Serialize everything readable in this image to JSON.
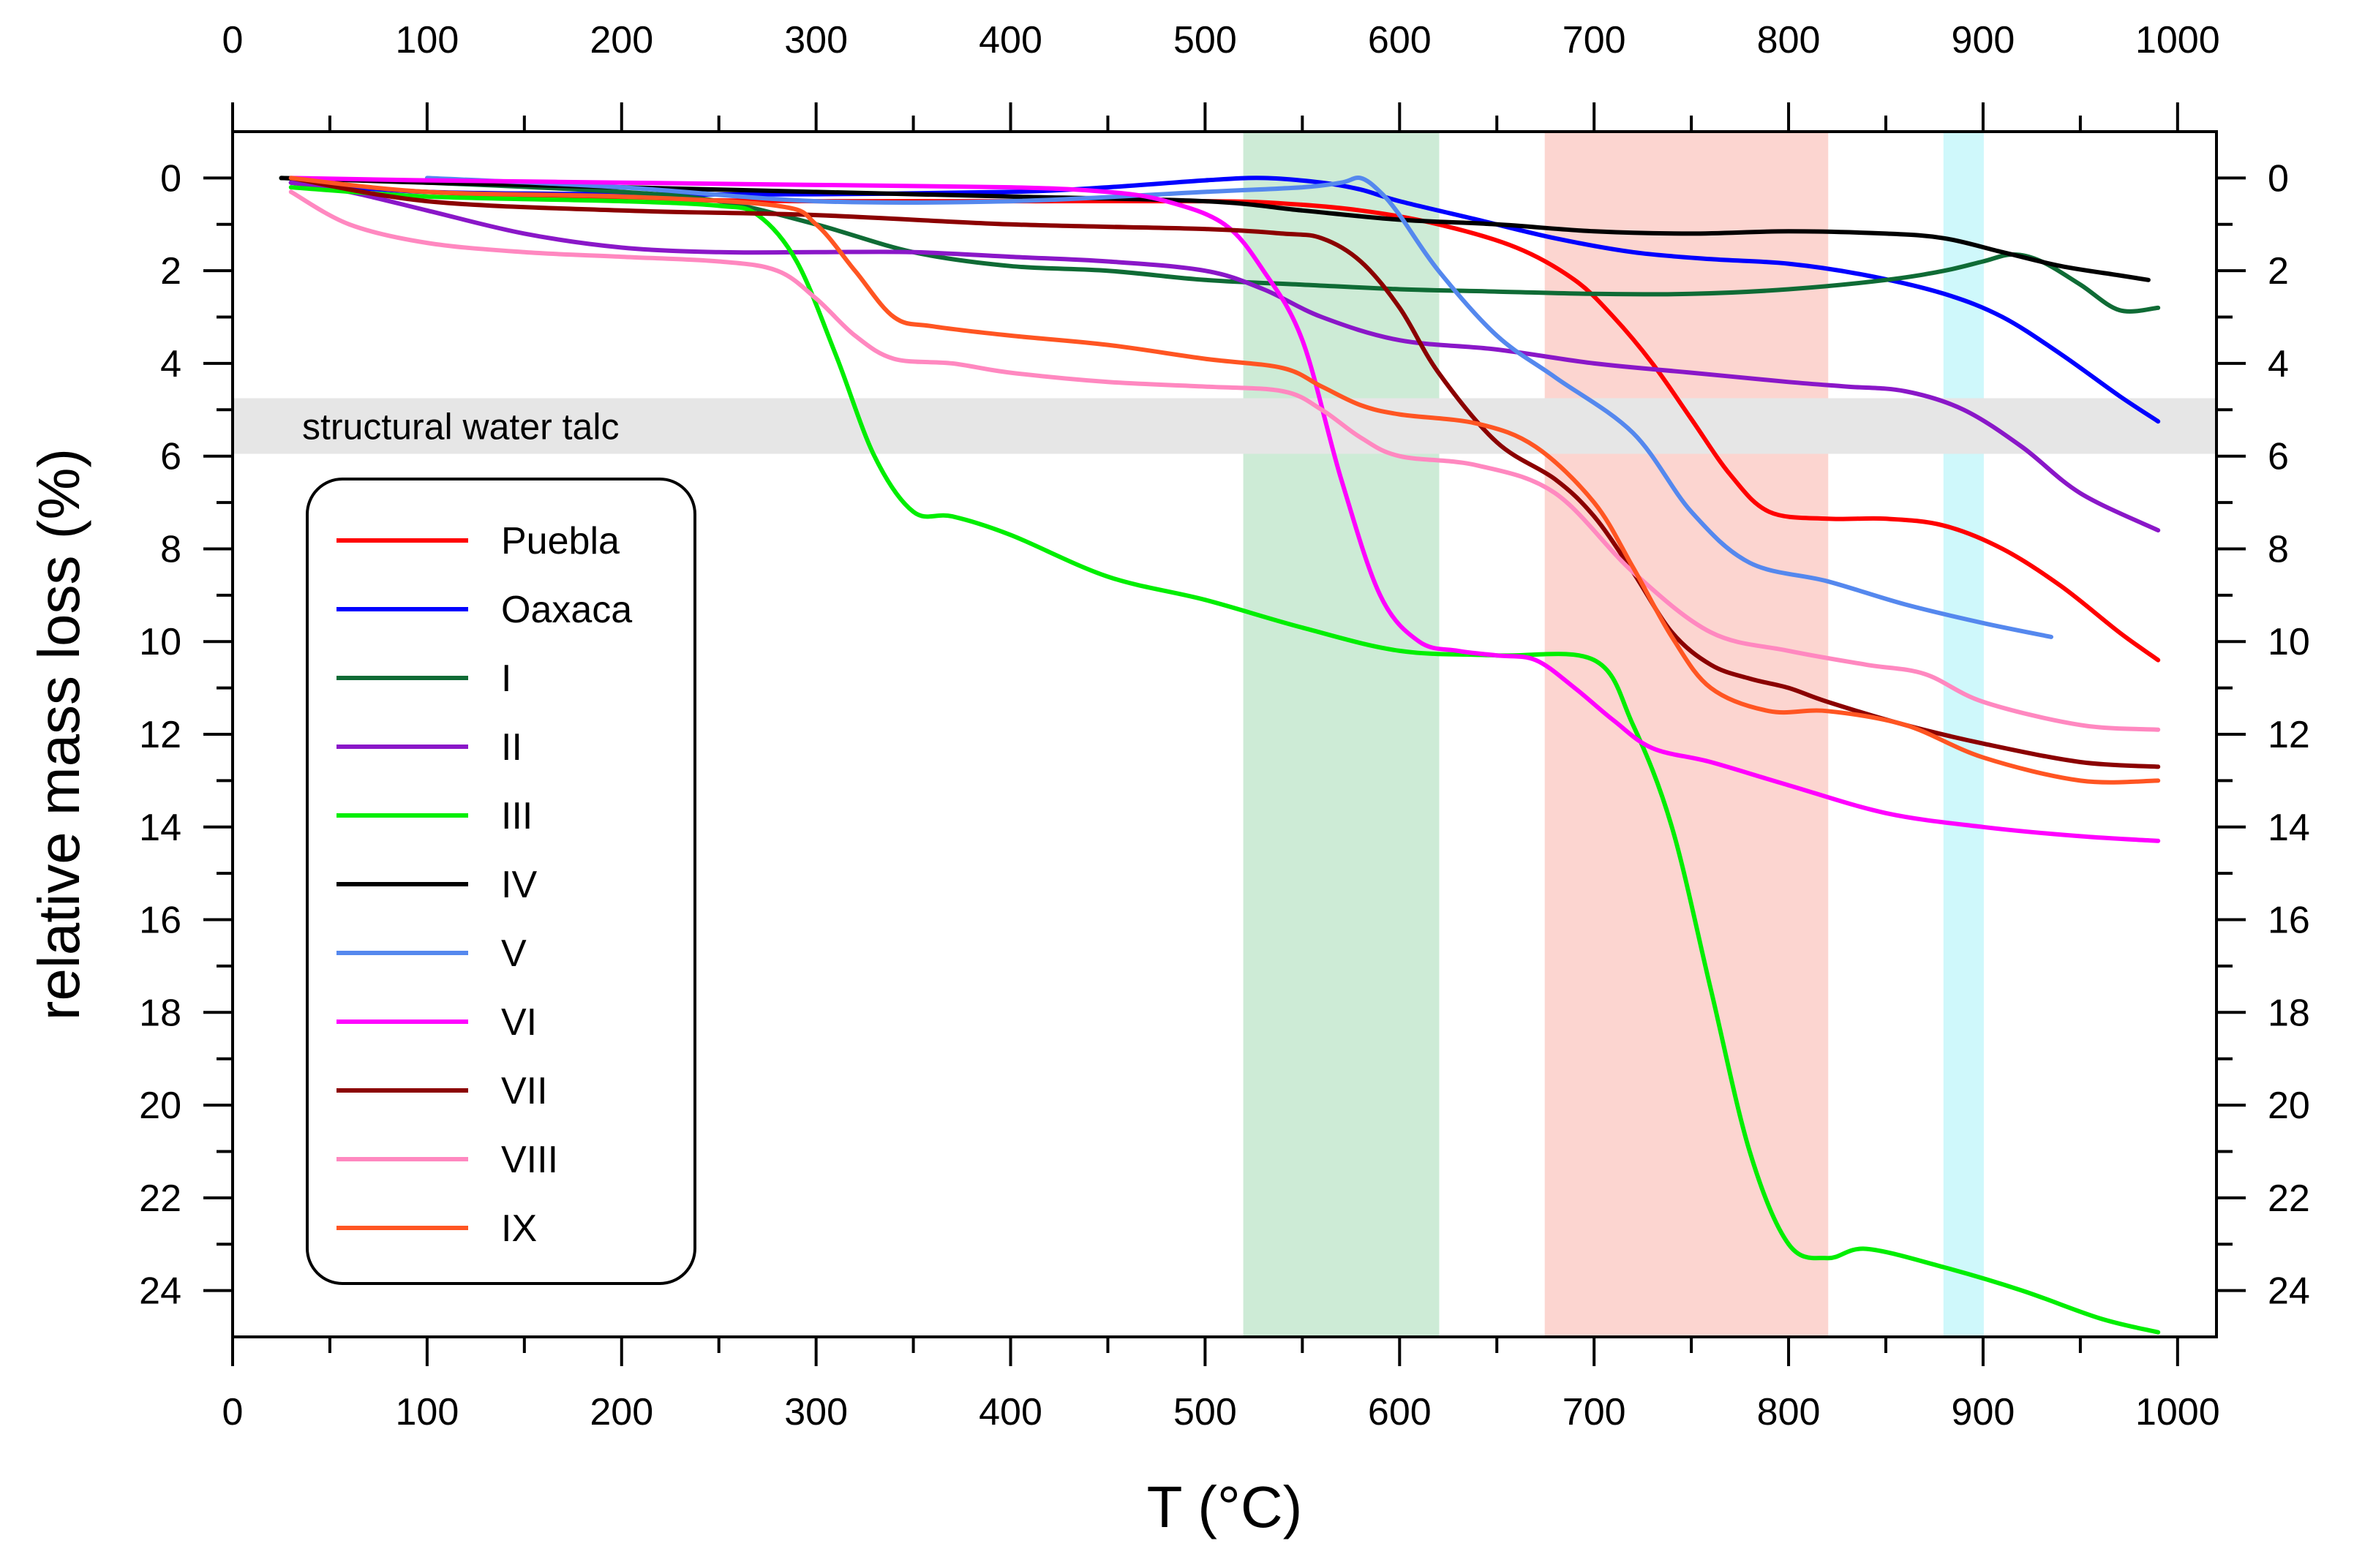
{
  "chart_data": {
    "type": "line",
    "title": "",
    "xlabel": "T (°C)",
    "ylabel": "relative mass loss (%)",
    "xlim": [
      0,
      1020
    ],
    "ylim": [
      25,
      -1
    ],
    "y_inverted": true,
    "x_ticks": [
      0,
      100,
      200,
      300,
      400,
      500,
      600,
      700,
      800,
      900,
      1000
    ],
    "y_ticks": [
      0,
      2,
      4,
      6,
      8,
      10,
      12,
      14,
      16,
      18,
      20,
      22,
      24
    ],
    "x_tick_labels": [
      "0",
      "100",
      "200",
      "300",
      "400",
      "500",
      "600",
      "700",
      "800",
      "900",
      "1000"
    ],
    "y_tick_labels": [
      "0",
      "2",
      "4",
      "6",
      "8",
      "10",
      "12",
      "14",
      "16",
      "18",
      "20",
      "22",
      "24"
    ],
    "grid": false,
    "bands": [
      {
        "x0": 520,
        "x1": 620,
        "color": "#cdebd6"
      },
      {
        "x0": 675,
        "x1": 820,
        "color": "#fcd5d0"
      },
      {
        "x0": 880,
        "x1": 900,
        "color": "#cff8fb"
      }
    ],
    "hbands": [
      {
        "y0": 4.75,
        "y1": 5.95,
        "color": "#e6e6e6",
        "label": "structural water talc"
      }
    ],
    "legend_position": "left",
    "series": [
      {
        "name": "Puebla",
        "color": "#ff0000",
        "x": [
          30,
          100,
          200,
          300,
          400,
          500,
          540,
          580,
          620,
          660,
          690,
          710,
          730,
          750,
          770,
          790,
          820,
          850,
          880,
          910,
          940,
          970,
          990
        ],
        "y": [
          0.1,
          0.3,
          0.45,
          0.5,
          0.5,
          0.5,
          0.55,
          0.7,
          1.0,
          1.5,
          2.2,
          3.0,
          4.0,
          5.2,
          6.4,
          7.2,
          7.35,
          7.35,
          7.5,
          8.0,
          8.8,
          9.8,
          10.4
        ]
      },
      {
        "name": "Oaxaca",
        "color": "#0000ff",
        "x": [
          30,
          100,
          200,
          300,
          400,
          450,
          500,
          530,
          560,
          580,
          600,
          640,
          680,
          720,
          760,
          800,
          840,
          880,
          910,
          940,
          970,
          990
        ],
        "y": [
          0.1,
          0.3,
          0.35,
          0.35,
          0.3,
          0.2,
          0.05,
          0.0,
          0.1,
          0.25,
          0.5,
          0.9,
          1.3,
          1.6,
          1.75,
          1.85,
          2.1,
          2.5,
          3.0,
          3.8,
          4.7,
          5.25
        ]
      },
      {
        "name": "I",
        "color": "#0f6b35",
        "x": [
          25,
          100,
          200,
          250,
          300,
          350,
          400,
          450,
          500,
          550,
          600,
          650,
          700,
          750,
          800,
          850,
          880,
          900,
          915,
          930,
          950,
          970,
          990
        ],
        "y": [
          0.0,
          0.1,
          0.3,
          0.5,
          1.0,
          1.6,
          1.9,
          2.0,
          2.2,
          2.3,
          2.4,
          2.45,
          2.5,
          2.5,
          2.4,
          2.2,
          2.0,
          1.8,
          1.65,
          1.8,
          2.3,
          2.85,
          2.8
        ]
      },
      {
        "name": "II",
        "color": "#8a17c8",
        "x": [
          30,
          60,
          100,
          150,
          200,
          250,
          300,
          350,
          400,
          450,
          500,
          530,
          560,
          600,
          650,
          700,
          750,
          800,
          830,
          860,
          890,
          920,
          950,
          990
        ],
        "y": [
          0.1,
          0.3,
          0.7,
          1.2,
          1.5,
          1.6,
          1.6,
          1.6,
          1.7,
          1.8,
          2.0,
          2.4,
          3.0,
          3.5,
          3.7,
          4.0,
          4.2,
          4.4,
          4.5,
          4.6,
          5.0,
          5.8,
          6.8,
          7.6
        ]
      },
      {
        "name": "III",
        "color": "#00ee00",
        "x": [
          30,
          100,
          200,
          250,
          270,
          290,
          310,
          330,
          350,
          370,
          400,
          450,
          500,
          550,
          600,
          650,
          700,
          720,
          740,
          760,
          780,
          800,
          820,
          840,
          880,
          920,
          960,
          990
        ],
        "y": [
          0.2,
          0.4,
          0.5,
          0.6,
          0.8,
          1.8,
          3.8,
          6.0,
          7.2,
          7.3,
          7.7,
          8.6,
          9.1,
          9.7,
          10.2,
          10.3,
          10.4,
          11.8,
          14.0,
          17.5,
          21.0,
          23.0,
          23.3,
          23.1,
          23.5,
          24.0,
          24.6,
          24.9
        ]
      },
      {
        "name": "IV",
        "color": "#000000",
        "x": [
          25,
          100,
          200,
          300,
          400,
          500,
          550,
          600,
          650,
          700,
          750,
          800,
          850,
          880,
          910,
          940,
          970,
          985
        ],
        "y": [
          0.0,
          0.1,
          0.2,
          0.3,
          0.4,
          0.5,
          0.7,
          0.9,
          1.0,
          1.15,
          1.2,
          1.15,
          1.2,
          1.3,
          1.6,
          1.9,
          2.1,
          2.2
        ]
      },
      {
        "name": "V",
        "color": "#5588ee",
        "x": [
          100,
          200,
          300,
          400,
          500,
          550,
          570,
          580,
          590,
          600,
          620,
          650,
          680,
          720,
          750,
          780,
          820,
          860,
          900,
          935
        ],
        "y": [
          0.0,
          0.2,
          0.5,
          0.5,
          0.3,
          0.2,
          0.1,
          0.0,
          0.3,
          0.8,
          2.0,
          3.4,
          4.3,
          5.5,
          7.2,
          8.3,
          8.7,
          9.2,
          9.6,
          9.9
        ]
      },
      {
        "name": "VI",
        "color": "#ff00ff",
        "x": [
          30,
          100,
          200,
          300,
          400,
          450,
          480,
          510,
          530,
          550,
          570,
          590,
          610,
          630,
          650,
          670,
          690,
          710,
          730,
          760,
          800,
          850,
          900,
          950,
          990
        ],
        "y": [
          0.0,
          0.05,
          0.1,
          0.15,
          0.2,
          0.3,
          0.5,
          1.0,
          2.0,
          3.5,
          6.5,
          9.0,
          10.0,
          10.2,
          10.3,
          10.4,
          11.0,
          11.7,
          12.3,
          12.6,
          13.1,
          13.7,
          14.0,
          14.2,
          14.3
        ]
      },
      {
        "name": "VII",
        "color": "#8b0000",
        "x": [
          30,
          100,
          200,
          300,
          400,
          500,
          540,
          560,
          580,
          600,
          620,
          650,
          680,
          700,
          720,
          740,
          760,
          780,
          800,
          820,
          860,
          900,
          950,
          990
        ],
        "y": [
          0.0,
          0.5,
          0.7,
          0.8,
          1.0,
          1.1,
          1.2,
          1.3,
          1.8,
          2.8,
          4.2,
          5.7,
          6.5,
          7.3,
          8.5,
          9.8,
          10.5,
          10.8,
          11.0,
          11.3,
          11.8,
          12.2,
          12.6,
          12.7
        ]
      },
      {
        "name": "VIII",
        "color": "#ff88c0",
        "x": [
          30,
          60,
          100,
          150,
          200,
          250,
          280,
          300,
          320,
          340,
          370,
          400,
          450,
          500,
          540,
          560,
          580,
          600,
          640,
          680,
          720,
          760,
          800,
          840,
          870,
          900,
          950,
          990
        ],
        "y": [
          0.3,
          1.0,
          1.4,
          1.6,
          1.7,
          1.8,
          2.0,
          2.6,
          3.4,
          3.9,
          4.0,
          4.2,
          4.4,
          4.5,
          4.6,
          5.0,
          5.6,
          6.0,
          6.2,
          6.8,
          8.5,
          9.8,
          10.2,
          10.5,
          10.7,
          11.3,
          11.8,
          11.9
        ]
      },
      {
        "name": "IX",
        "color": "#ff5522",
        "x": [
          30,
          100,
          200,
          280,
          300,
          320,
          340,
          360,
          400,
          450,
          500,
          540,
          560,
          580,
          600,
          640,
          670,
          700,
          720,
          740,
          760,
          790,
          820,
          860,
          900,
          950,
          990
        ],
        "y": [
          0.0,
          0.3,
          0.4,
          0.6,
          1.0,
          2.0,
          3.0,
          3.2,
          3.4,
          3.6,
          3.9,
          4.1,
          4.5,
          4.9,
          5.1,
          5.3,
          5.8,
          7.0,
          8.4,
          9.9,
          11.0,
          11.5,
          11.5,
          11.8,
          12.5,
          13.0,
          13.0
        ]
      }
    ]
  }
}
